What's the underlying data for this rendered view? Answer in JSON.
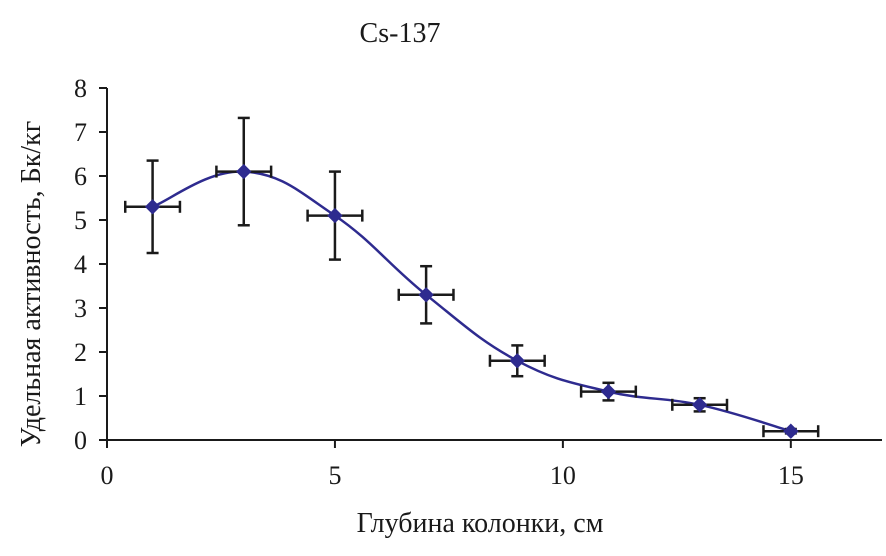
{
  "chart_data": {
    "type": "scatter",
    "title": "Cs-137",
    "xlabel": "Глубина колонки, см",
    "ylabel": "Удельная активность, Бк/кг",
    "xlim": [
      0,
      17
    ],
    "ylim": [
      0,
      8
    ],
    "x_ticks": [
      "0",
      "5",
      "10",
      "15"
    ],
    "y_ticks": [
      "0",
      "1",
      "2",
      "3",
      "4",
      "5",
      "6",
      "7",
      "8"
    ],
    "grid": false,
    "legend": "none",
    "smooth_line": true,
    "series": [
      {
        "x": [
          1,
          3,
          5,
          7,
          9,
          11,
          13,
          15
        ],
        "y": [
          5.3,
          6.1,
          5.1,
          3.3,
          1.8,
          1.1,
          0.8,
          0.2
        ],
        "y_error": [
          1.05,
          1.22,
          1.0,
          0.65,
          0.35,
          0.2,
          0.15,
          0.05
        ],
        "x_error": [
          0.6,
          0.6,
          0.6,
          0.6,
          0.6,
          0.6,
          0.6,
          0.6
        ]
      }
    ],
    "colors": {
      "line": "#2e2b8f",
      "marker": "#2e2b8f",
      "error_bar": "#1a1a1a",
      "axis": "#1a1a1a"
    }
  }
}
